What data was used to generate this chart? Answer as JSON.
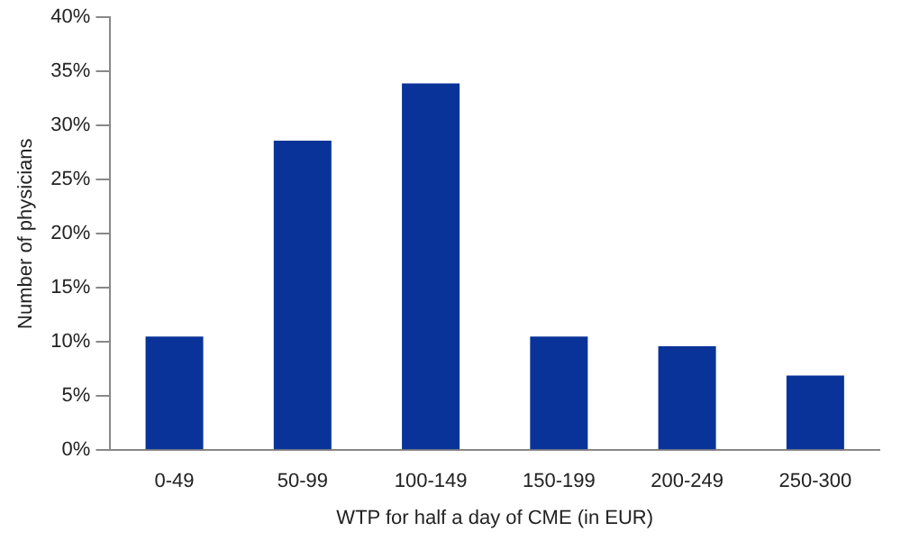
{
  "chart_data": {
    "type": "bar",
    "xlabel": "WTP for half a day of CME (in EUR)",
    "ylabel": "Number of physicians",
    "categories": [
      "0-49",
      "50-99",
      "100-149",
      "150-199",
      "200-249",
      "250-300"
    ],
    "values": [
      10.5,
      28.6,
      33.9,
      10.5,
      9.6,
      6.9
    ],
    "color": "#0a3399",
    "ylim": [
      0,
      40
    ],
    "yticks": [
      {
        "value": 0,
        "label": "0%"
      },
      {
        "value": 5,
        "label": "5%"
      },
      {
        "value": 10,
        "label": "10%"
      },
      {
        "value": 15,
        "label": "15%"
      },
      {
        "value": 20,
        "label": "20%"
      },
      {
        "value": 25,
        "label": "25%"
      },
      {
        "value": 30,
        "label": "30%"
      },
      {
        "value": 35,
        "label": "35%"
      },
      {
        "value": 40,
        "label": "40%"
      }
    ],
    "grid": false,
    "legend": false
  }
}
